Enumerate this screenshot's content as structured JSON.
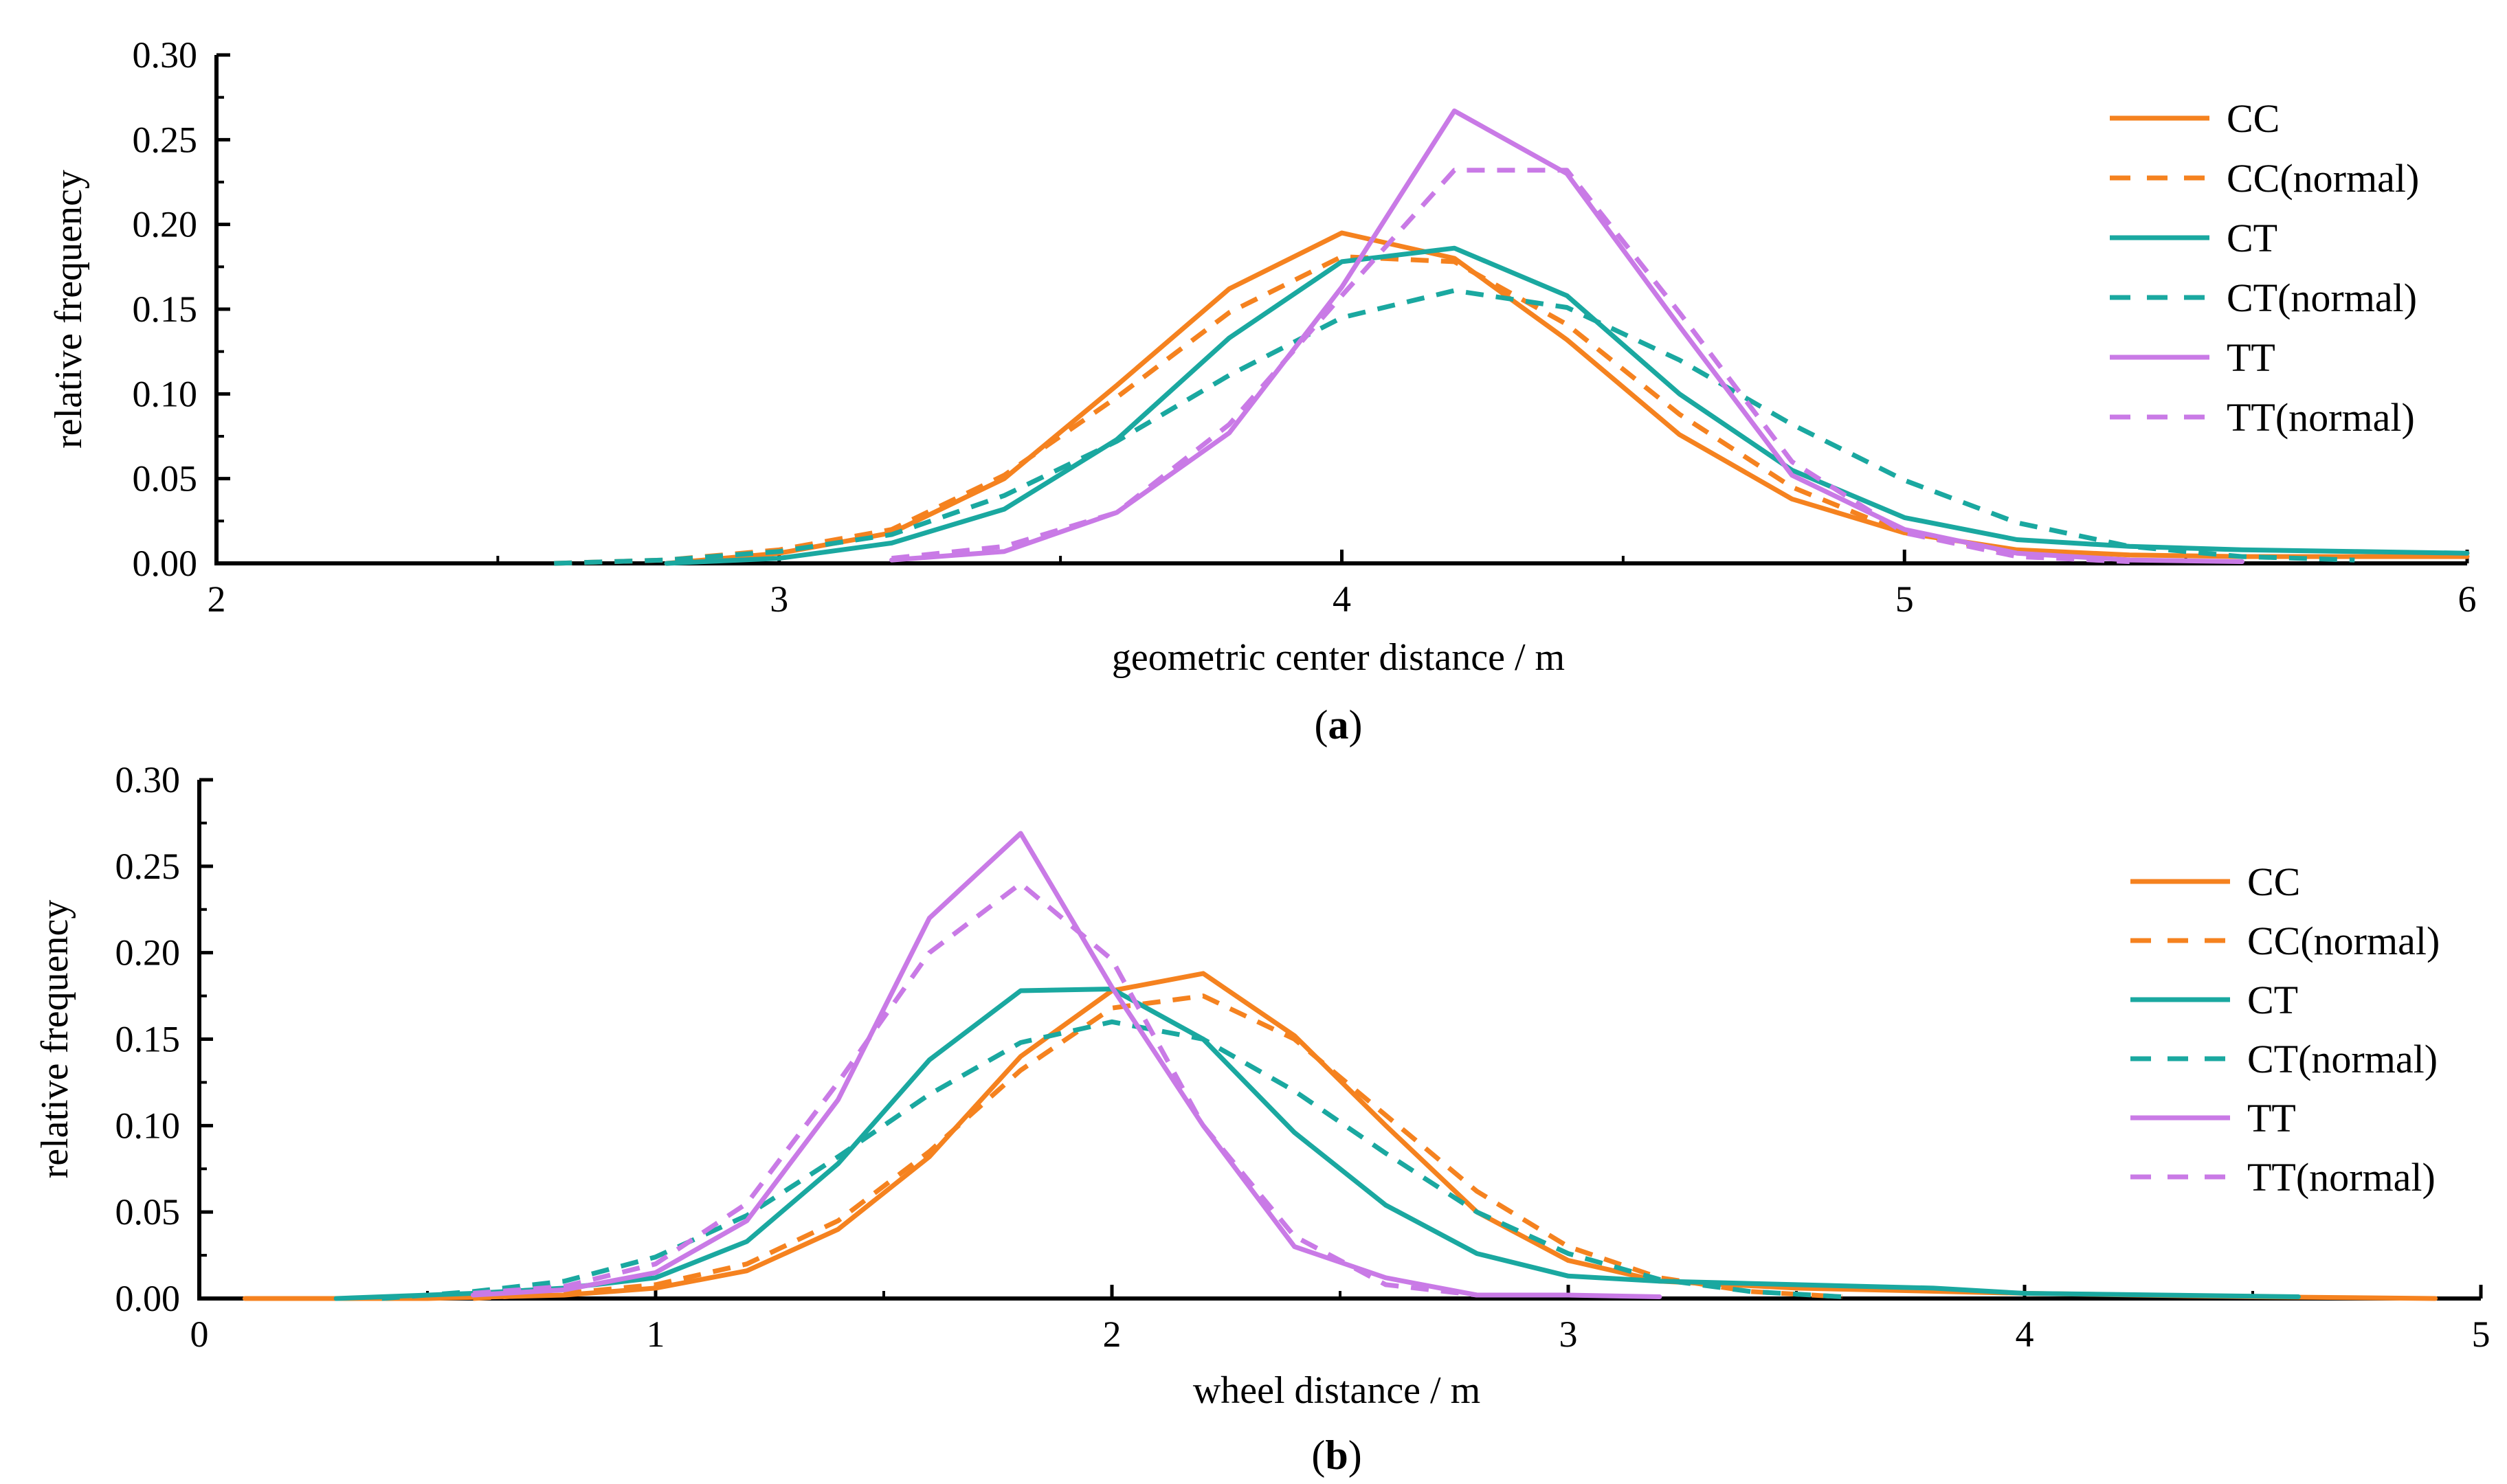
{
  "colors": {
    "CC": "#f5821f",
    "CT": "#1aa8a0",
    "TT": "#c97ae6",
    "axis": "#000000"
  },
  "chart_data": [
    {
      "id": "a",
      "type": "line",
      "caption_letter": "a",
      "caption_open": "(",
      "caption_close": ")",
      "xlabel": "geometric center distance / m",
      "ylabel": "relative frequency",
      "xlim": [
        2,
        6
      ],
      "ylim": [
        0,
        0.3
      ],
      "xticks": [
        2,
        3,
        4,
        5,
        6
      ],
      "xtick_labels": [
        "2",
        "3",
        "4",
        "5",
        "6"
      ],
      "yticks": [
        0,
        0.05,
        0.1,
        0.15,
        0.2,
        0.25,
        0.3
      ],
      "ytick_labels": [
        "0.00",
        "0.05",
        "0.10",
        "0.15",
        "0.20",
        "0.25",
        "0.30"
      ],
      "legend_position": "top-right",
      "series": [
        {
          "name": "CC",
          "style": "solid",
          "color_key": "CC",
          "x": [
            2.8,
            3.0,
            3.2,
            3.4,
            3.6,
            3.8,
            4.0,
            4.2,
            4.4,
            4.6,
            4.8,
            5.0,
            5.2,
            5.4,
            5.6,
            5.8,
            6.0
          ],
          "y": [
            0.0,
            0.006,
            0.018,
            0.05,
            0.105,
            0.162,
            0.195,
            0.18,
            0.132,
            0.076,
            0.038,
            0.018,
            0.008,
            0.005,
            0.004,
            0.004,
            0.004
          ]
        },
        {
          "name": "CC(normal)",
          "style": "dashed",
          "color_key": "CC",
          "x": [
            2.6,
            2.8,
            3.0,
            3.2,
            3.4,
            3.6,
            3.8,
            4.0,
            4.2,
            4.4,
            4.6,
            4.8,
            5.0,
            5.2,
            5.4
          ],
          "y": [
            0.0,
            0.002,
            0.008,
            0.02,
            0.052,
            0.098,
            0.148,
            0.181,
            0.178,
            0.141,
            0.088,
            0.045,
            0.018,
            0.006,
            0.002
          ]
        },
        {
          "name": "CT",
          "style": "solid",
          "color_key": "CT",
          "x": [
            2.8,
            3.0,
            3.2,
            3.4,
            3.6,
            3.8,
            4.0,
            4.2,
            4.4,
            4.6,
            4.8,
            5.0,
            5.2,
            5.4,
            5.6,
            5.8,
            6.0
          ],
          "y": [
            0.0,
            0.003,
            0.012,
            0.032,
            0.073,
            0.133,
            0.178,
            0.186,
            0.158,
            0.1,
            0.055,
            0.027,
            0.014,
            0.01,
            0.008,
            0.007,
            0.006
          ]
        },
        {
          "name": "CT(normal)",
          "style": "dashed",
          "color_key": "CT",
          "x": [
            2.6,
            2.8,
            3.0,
            3.2,
            3.4,
            3.6,
            3.8,
            4.0,
            4.2,
            4.4,
            4.6,
            4.8,
            5.0,
            5.2,
            5.4,
            5.6,
            5.8
          ],
          "y": [
            0.0,
            0.002,
            0.007,
            0.017,
            0.04,
            0.072,
            0.111,
            0.145,
            0.161,
            0.151,
            0.12,
            0.082,
            0.049,
            0.024,
            0.01,
            0.004,
            0.002
          ]
        },
        {
          "name": "TT",
          "style": "solid",
          "color_key": "TT",
          "x": [
            3.2,
            3.4,
            3.6,
            3.8,
            4.0,
            4.2,
            4.4,
            4.6,
            4.8,
            5.0,
            5.2,
            5.4,
            5.6
          ],
          "y": [
            0.002,
            0.007,
            0.03,
            0.077,
            0.163,
            0.267,
            0.23,
            0.14,
            0.052,
            0.02,
            0.006,
            0.002,
            0.001
          ]
        },
        {
          "name": "TT(normal)",
          "style": "dashed",
          "color_key": "TT",
          "x": [
            3.2,
            3.4,
            3.6,
            3.8,
            4.0,
            4.2,
            4.4,
            4.6,
            4.8,
            5.0,
            5.2,
            5.4
          ],
          "y": [
            0.003,
            0.01,
            0.03,
            0.082,
            0.158,
            0.232,
            0.232,
            0.148,
            0.06,
            0.018,
            0.004,
            0.001
          ]
        }
      ]
    },
    {
      "id": "b",
      "type": "line",
      "caption_letter": "b",
      "caption_open": "(",
      "caption_close": ")",
      "xlabel": "wheel distance / m",
      "ylabel": "relative frequency",
      "xlim": [
        0,
        5
      ],
      "ylim": [
        0,
        0.3
      ],
      "xticks": [
        0,
        1,
        2,
        3,
        4,
        5
      ],
      "xtick_labels": [
        "0",
        "1",
        "2",
        "3",
        "4",
        "5"
      ],
      "yticks": [
        0,
        0.05,
        0.1,
        0.15,
        0.2,
        0.25,
        0.3
      ],
      "ytick_labels": [
        "0.00",
        "0.05",
        "0.10",
        "0.15",
        "0.20",
        "0.25",
        "0.30"
      ],
      "legend_position": "right",
      "series": [
        {
          "name": "CC",
          "style": "solid",
          "color_key": "CC",
          "x": [
            0.1,
            0.5,
            0.8,
            1.0,
            1.2,
            1.4,
            1.6,
            1.8,
            2.0,
            2.2,
            2.4,
            2.6,
            2.8,
            3.0,
            3.2,
            3.5,
            4.0,
            4.5,
            4.9
          ],
          "y": [
            0.0,
            0.0,
            0.002,
            0.006,
            0.016,
            0.04,
            0.082,
            0.14,
            0.178,
            0.188,
            0.152,
            0.1,
            0.05,
            0.022,
            0.01,
            0.006,
            0.003,
            0.001,
            0.0
          ]
        },
        {
          "name": "CC(normal)",
          "style": "dashed",
          "color_key": "CC",
          "x": [
            0.6,
            0.8,
            1.0,
            1.2,
            1.4,
            1.6,
            1.8,
            2.0,
            2.2,
            2.4,
            2.6,
            2.8,
            3.0,
            3.2,
            3.4,
            3.6
          ],
          "y": [
            0.0,
            0.003,
            0.008,
            0.02,
            0.045,
            0.085,
            0.132,
            0.168,
            0.175,
            0.15,
            0.106,
            0.062,
            0.03,
            0.012,
            0.004,
            0.001
          ]
        },
        {
          "name": "CT",
          "style": "solid",
          "color_key": "CT",
          "x": [
            0.3,
            0.6,
            0.8,
            1.0,
            1.2,
            1.4,
            1.6,
            1.8,
            2.0,
            2.2,
            2.4,
            2.6,
            2.8,
            3.0,
            3.2,
            3.5,
            3.8,
            4.0,
            4.3,
            4.6
          ],
          "y": [
            0.0,
            0.003,
            0.006,
            0.012,
            0.033,
            0.078,
            0.138,
            0.178,
            0.179,
            0.15,
            0.096,
            0.054,
            0.026,
            0.013,
            0.01,
            0.008,
            0.006,
            0.003,
            0.002,
            0.001
          ]
        },
        {
          "name": "CT(normal)",
          "style": "dashed",
          "color_key": "CT",
          "x": [
            0.4,
            0.6,
            0.8,
            1.0,
            1.2,
            1.4,
            1.6,
            1.8,
            2.0,
            2.2,
            2.4,
            2.6,
            2.8,
            3.0,
            3.2,
            3.4,
            3.6
          ],
          "y": [
            0.0,
            0.004,
            0.01,
            0.024,
            0.048,
            0.082,
            0.118,
            0.148,
            0.16,
            0.15,
            0.12,
            0.084,
            0.05,
            0.026,
            0.011,
            0.004,
            0.001
          ]
        },
        {
          "name": "TT",
          "style": "solid",
          "color_key": "TT",
          "x": [
            0.6,
            0.8,
            1.0,
            1.2,
            1.4,
            1.6,
            1.8,
            2.0,
            2.2,
            2.4,
            2.6,
            2.8,
            3.0,
            3.2
          ],
          "y": [
            0.002,
            0.005,
            0.015,
            0.045,
            0.115,
            0.22,
            0.269,
            0.18,
            0.1,
            0.03,
            0.012,
            0.002,
            0.002,
            0.001
          ]
        },
        {
          "name": "TT(normal)",
          "style": "dashed",
          "color_key": "TT",
          "x": [
            0.6,
            0.8,
            1.0,
            1.2,
            1.4,
            1.6,
            1.8,
            2.0,
            2.2,
            2.4,
            2.6,
            2.8
          ],
          "y": [
            0.003,
            0.007,
            0.02,
            0.055,
            0.125,
            0.2,
            0.24,
            0.196,
            0.1,
            0.036,
            0.008,
            0.002
          ]
        }
      ]
    }
  ]
}
